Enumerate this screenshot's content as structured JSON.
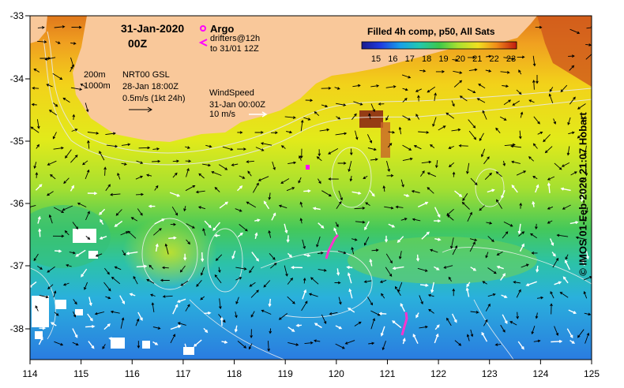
{
  "header": {
    "date": "31-Jan-2020",
    "time": "00Z"
  },
  "legend": {
    "argo_label": "Argo",
    "drifters_label": "drifters@12h",
    "drifters_period": "to 31/01 12Z",
    "contour_200": "200m",
    "contour_1000": "1000m",
    "current_source": "NRT00 GSL",
    "current_date": "28-Jan 18:00Z",
    "current_scale": "0.5m/s (1kt 24h)",
    "wind_title": "WindSpeed",
    "wind_date": "31-Jan 00:00Z",
    "wind_scale": "10 m/s"
  },
  "colorbar": {
    "title": "Filled 4h comp, p50, All Sats",
    "ticks": [
      "15",
      "16",
      "17",
      "18",
      "19",
      "20",
      "21",
      "22",
      "23"
    ]
  },
  "axes": {
    "x_ticks": [
      "114",
      "115",
      "116",
      "117",
      "118",
      "119",
      "120",
      "121",
      "122",
      "123",
      "124",
      "125"
    ],
    "y_ticks": [
      "-33",
      "-34",
      "-35",
      "-36",
      "-37",
      "-38"
    ]
  },
  "credit": "© IMOS 01-Feb-2020 21:07 Hobart",
  "colors": {
    "land": "#f9c89a",
    "argo": "#ff00ff",
    "drifter": "#ff33cc",
    "contour": "#e8e8e8"
  }
}
